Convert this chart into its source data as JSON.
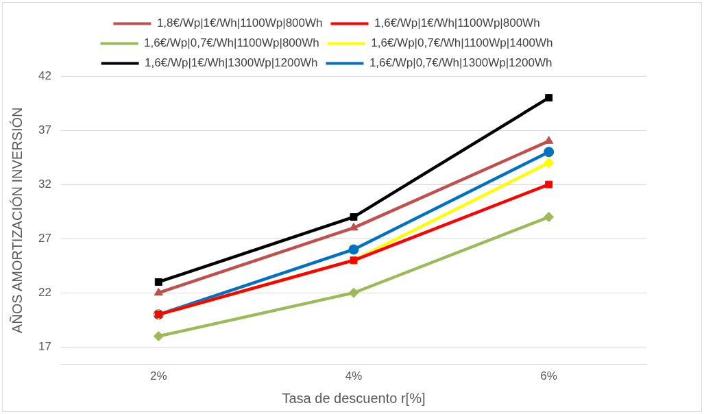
{
  "chart_data": {
    "type": "line",
    "xlabel": "Tasa de descuento r[%]",
    "ylabel": "AÑOS AMORTIZACIÓN INVERSIÓN",
    "categories": [
      "2%",
      "4%",
      "6%"
    ],
    "ylim": [
      15.4,
      42
    ],
    "yticks": [
      17,
      22,
      27,
      32,
      37,
      42
    ],
    "grid": "y",
    "legend": "top",
    "series": [
      {
        "name": "1,8€/Wp|1€/Wh|1100Wp|800Wh",
        "color": "#c0504d",
        "marker": "triangle",
        "values": [
          22,
          28,
          36
        ]
      },
      {
        "name": "1,6€/Wp|1€/Wh|1100Wp|800Wh",
        "color": "#ff0000",
        "marker": "square",
        "values": [
          20,
          25,
          32
        ]
      },
      {
        "name": "1,6€/Wp|0,7€/Wh|1100Wp|800Wh",
        "color": "#9bbb59",
        "marker": "diamond",
        "values": [
          18,
          22,
          29
        ]
      },
      {
        "name": "1,6€/Wp|0,7€/Wh|1100Wp|1400Wh",
        "color": "#ffff00",
        "marker": "diamond",
        "values": [
          20,
          25,
          34
        ]
      },
      {
        "name": "1,6€/Wp|1€/Wh|1300Wp|1200Wh",
        "color": "#000000",
        "marker": "square",
        "values": [
          23,
          29,
          40
        ]
      },
      {
        "name": "1,6€/Wp|0,7€/Wh|1300Wp|1200Wh",
        "color": "#0070c0",
        "marker": "circle",
        "values": [
          20,
          26,
          35
        ]
      }
    ]
  }
}
